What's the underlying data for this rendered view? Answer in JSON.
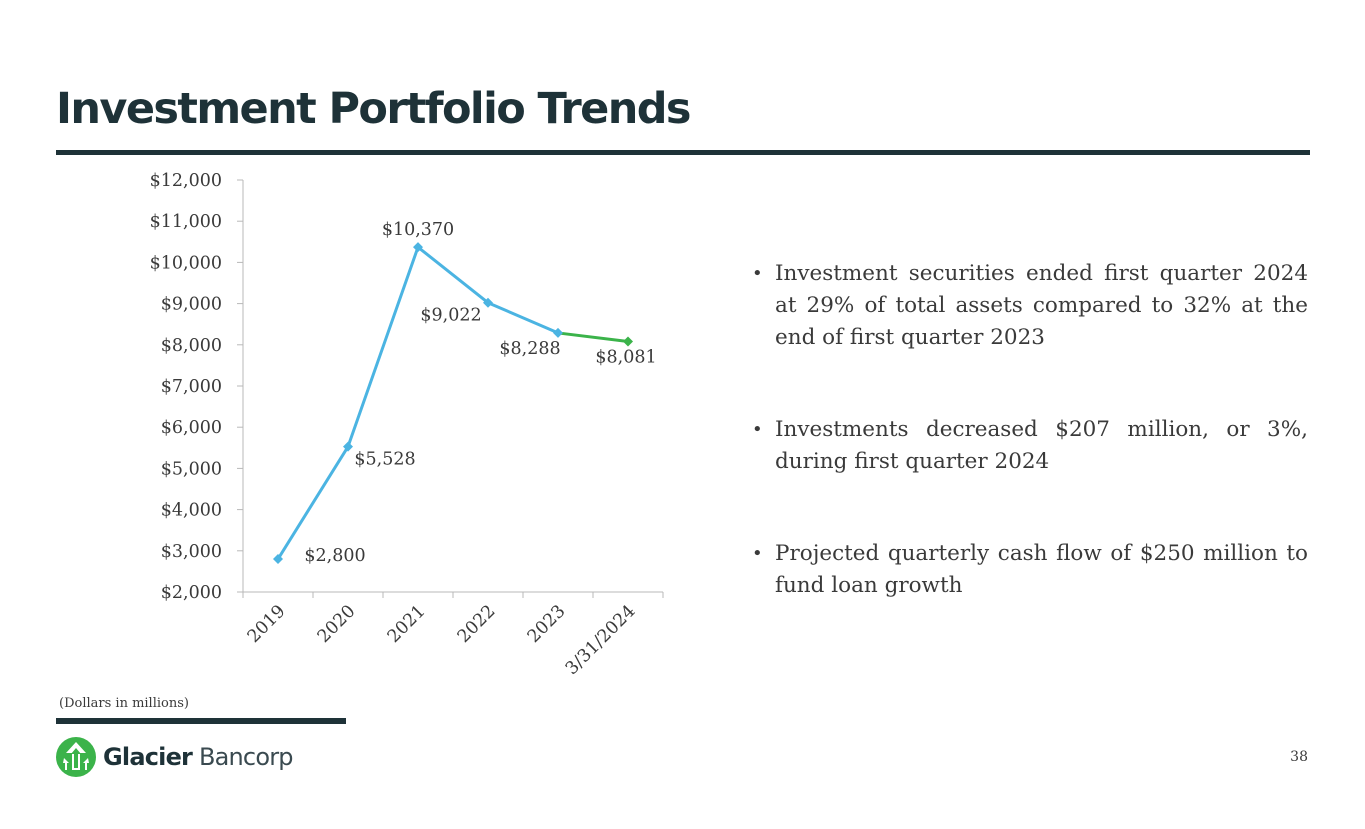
{
  "slide": {
    "title": "Investment Portfolio Trends",
    "footnote": "(Dollars in millions)",
    "page_number": "38"
  },
  "logo": {
    "brand_bold": "Glacier",
    "brand_light": "Bancorp"
  },
  "bullets": [
    "Investment securities ended first quarter 2024 at 29% of total assets compared to 32% at the end of first quarter 2023",
    "Investments decreased $207 million, or 3%, during first quarter 2024",
    "Projected quarterly cash flow of $250 million to fund loan growth"
  ],
  "colors": {
    "series_blue": "#4bb4e2",
    "series_green": "#3bb34a",
    "brand_dark": "#1e3238",
    "logo_green": "#3bb34a"
  },
  "chart_data": {
    "type": "line",
    "categories": [
      "2019",
      "2020",
      "2021",
      "2022",
      "2023",
      "3/31/2024"
    ],
    "values": [
      2800,
      5528,
      10370,
      9022,
      8288,
      8081
    ],
    "data_labels": [
      "$2,800",
      "$5,528",
      "$10,370",
      "$9,022",
      "$8,288",
      "$8,081"
    ],
    "segment_colors": [
      "#4bb4e2",
      "#4bb4e2",
      "#4bb4e2",
      "#4bb4e2",
      "#3bb34a"
    ],
    "ylim": [
      2000,
      12000
    ],
    "y_ticks": [
      2000,
      3000,
      4000,
      5000,
      6000,
      7000,
      8000,
      9000,
      10000,
      11000,
      12000
    ],
    "y_tick_labels": [
      "$2,000",
      "$3,000",
      "$4,000",
      "$5,000",
      "$6,000",
      "$7,000",
      "$8,000",
      "$9,000",
      "$10,000",
      "$11,000",
      "$12,000"
    ],
    "title": "",
    "xlabel": "",
    "ylabel": "",
    "grid": false,
    "legend": "none"
  }
}
